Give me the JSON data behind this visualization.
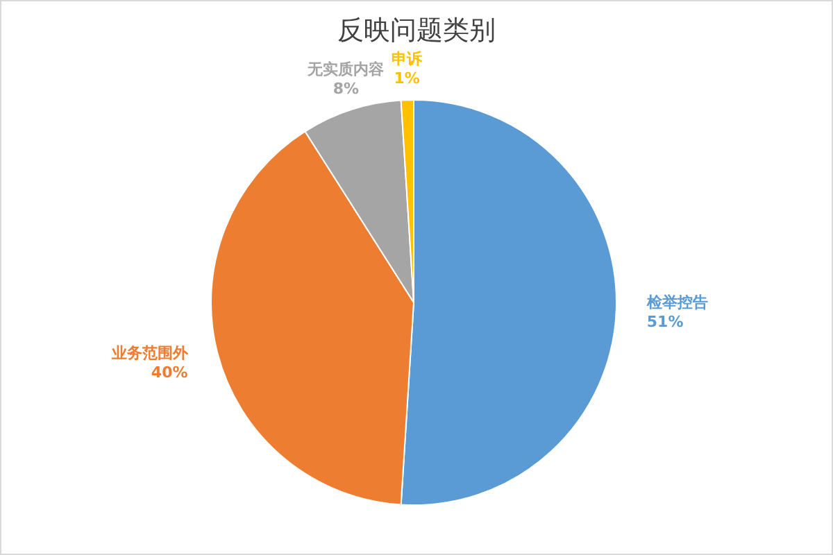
{
  "chart_data": {
    "type": "pie",
    "title": "反映问题类别",
    "categories": [
      "检举控告",
      "业务范围外",
      "无实质内容",
      "申诉"
    ],
    "values": [
      51,
      40,
      8,
      1
    ],
    "value_labels": [
      "51%",
      "40%",
      "8%",
      "1%"
    ],
    "colors": [
      "#5b9bd5",
      "#ed7d31",
      "#a5a5a5",
      "#ffc000"
    ]
  }
}
